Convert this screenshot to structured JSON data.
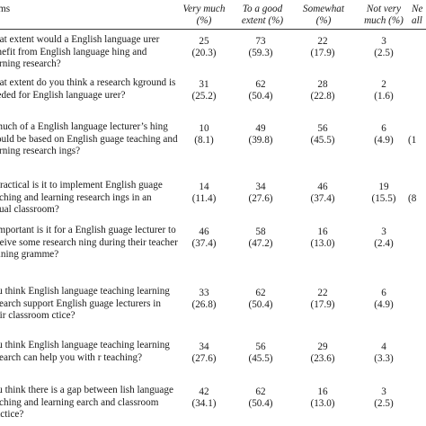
{
  "header": {
    "items_label": "ms",
    "col1": [
      "Very much",
      "(%)"
    ],
    "col2": [
      "To a good",
      "extent (%)"
    ],
    "col3": [
      "Somewhat",
      "(%)"
    ],
    "col4": [
      "Not very",
      "much (%)"
    ],
    "col5": [
      "Ne",
      "all"
    ]
  },
  "rows": [
    {
      "question": "what extent would a English language urer benefit from English language hing and learning research?",
      "v1": "25",
      "p1": "(20.3)",
      "v2": "73",
      "p2": "(59.3)",
      "v3": "22",
      "p3": "(17.9)",
      "v4": "3",
      "p4": "(2.5)",
      "v5": "",
      "p5": ""
    },
    {
      "question": "what extent do you think a research kground is needed for English language urer?",
      "v1": "31",
      "p1": "(25.2)",
      "v2": "62",
      "p2": "(50.4)",
      "v3": "28",
      "p3": "(22.8)",
      "v4": "2",
      "p4": "(1.6)",
      "v5": "",
      "p5": ""
    },
    {
      "question": "v much of a English language lecturer’s hing should be based on English guage teaching and learning research ings?",
      "v1": "10",
      "p1": "(8.1)",
      "v2": "49",
      "p2": "(39.8)",
      "v3": "56",
      "p3": "(45.5)",
      "v4": "6",
      "p4": "(4.9)",
      "v5": "",
      "p5": "(1"
    },
    {
      "question": "v practical is it to implement English guage teaching and learning research ings in an actual classroom?",
      "v1": "14",
      "p1": "(11.4)",
      "v2": "34",
      "p2": "(27.6)",
      "v3": "46",
      "p3": "(37.4)",
      "v4": "19",
      "p4": "(15.5)",
      "v5": "",
      "p5": "(8"
    },
    {
      "question": "v important is it for a English guage lecturer to receive some research ning during their teacher training gramme?",
      "v1": "46",
      "p1": "(37.4)",
      "v2": "58",
      "p2": "(47.2)",
      "v3": "16",
      "p3": "(13.0)",
      "v4": "3",
      "p4": "(2.4)",
      "v5": "",
      "p5": ""
    },
    {
      "question": "you think English language teaching learning research support English guage lecturers in their classroom ctice?",
      "v1": "33",
      "p1": "(26.8)",
      "v2": "62",
      "p2": "(50.4)",
      "v3": "22",
      "p3": "(17.9)",
      "v4": "6",
      "p4": "(4.9)",
      "v5": "",
      "p5": ""
    },
    {
      "question": "you think English language teaching learning research can help you with r teaching?",
      "v1": "34",
      "p1": "(27.6)",
      "v2": "56",
      "p2": "(45.5)",
      "v3": "29",
      "p3": "(23.6)",
      "v4": "4",
      "p4": "(3.3)",
      "v5": "",
      "p5": ""
    },
    {
      "question": "you think there is a gap between lish language teaching and learning earch and classroom practice?",
      "v1": "42",
      "p1": "(34.1)",
      "v2": "62",
      "p2": "(50.4)",
      "v3": "16",
      "p3": "(13.0)",
      "v4": "3",
      "p4": "(2.5)",
      "v5": "",
      "p5": ""
    }
  ]
}
